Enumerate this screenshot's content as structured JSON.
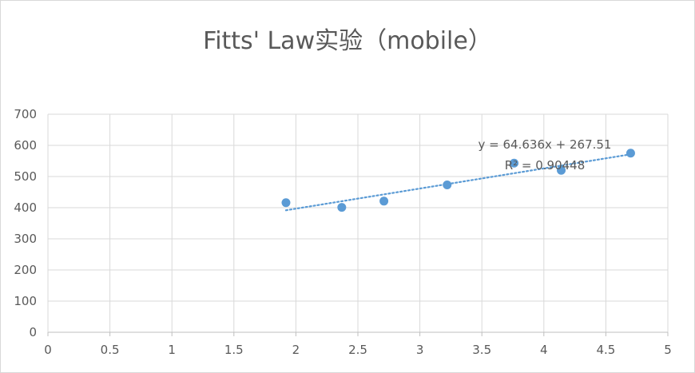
{
  "chart_data": {
    "type": "scatter",
    "title": "Fitts' Law实验（mobile）",
    "xlabel": "",
    "ylabel": "",
    "xlim": [
      0,
      5
    ],
    "ylim": [
      0,
      700
    ],
    "xticks": [
      0,
      0.5,
      1,
      1.5,
      2,
      2.5,
      3,
      3.5,
      4,
      4.5,
      5
    ],
    "xtick_labels": [
      "0",
      "0.5",
      "1",
      "1.5",
      "2",
      "2.5",
      "3",
      "3.5",
      "4",
      "4.5",
      "5"
    ],
    "yticks": [
      0,
      100,
      200,
      300,
      400,
      500,
      600,
      700
    ],
    "ytick_labels": [
      "0",
      "100",
      "200",
      "300",
      "400",
      "500",
      "600",
      "700"
    ],
    "grid": true,
    "legend": "none",
    "series": [
      {
        "points": [
          {
            "x": 1.92,
            "y": 416
          },
          {
            "x": 2.37,
            "y": 401
          },
          {
            "x": 2.71,
            "y": 421
          },
          {
            "x": 3.22,
            "y": 473
          },
          {
            "x": 3.76,
            "y": 543
          },
          {
            "x": 4.14,
            "y": 520
          },
          {
            "x": 4.7,
            "y": 575
          }
        ],
        "color": "#5b9bd5"
      }
    ],
    "trendline": {
      "type": "linear",
      "slope": 64.636,
      "intercept": 267.51,
      "x_range": [
        1.92,
        4.7
      ],
      "color": "#5b9bd5",
      "style": "dotted",
      "equation_label": "y = 64.636x + 267.51",
      "r2_label": "R² = 0.90448"
    }
  }
}
